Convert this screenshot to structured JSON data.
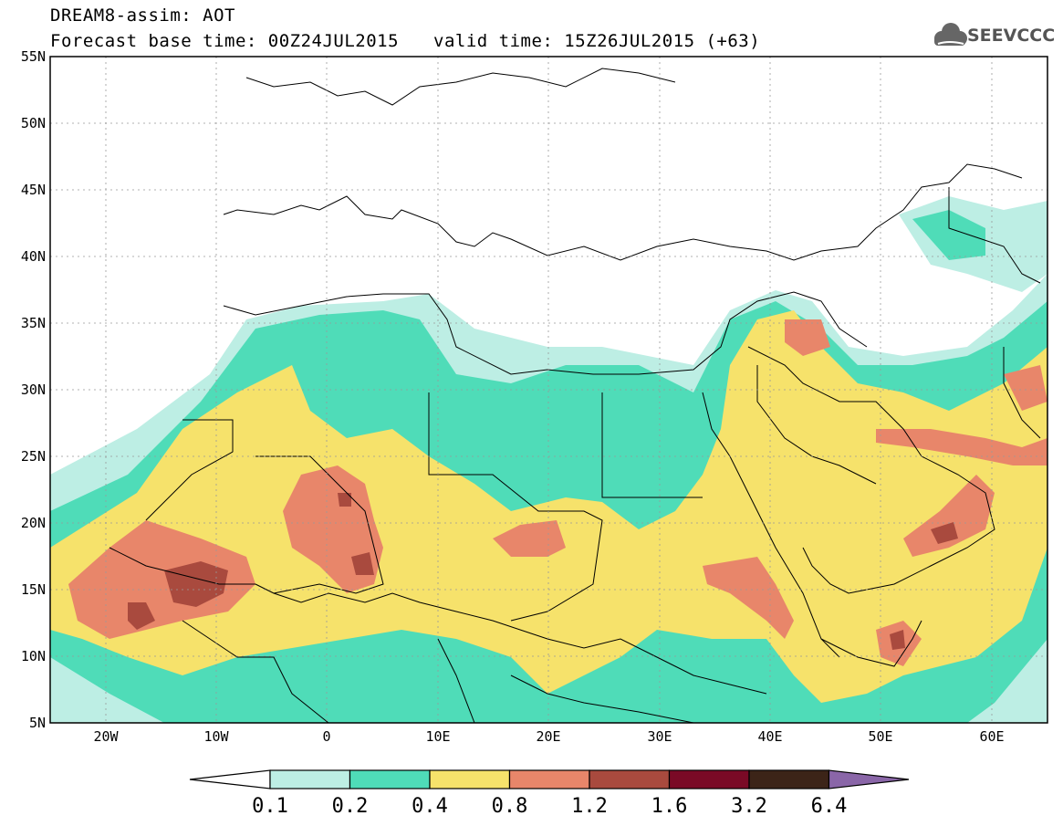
{
  "header": {
    "model_line": "DREAM8-assim: AOT",
    "base_time_line": "Forecast base time: 00Z24JUL2015",
    "valid_time_line": "valid time: 15Z26JUL2015 (+63)"
  },
  "logo": {
    "text": "SEEVCCC",
    "icon": "cloud-icon"
  },
  "axes": {
    "latitude_labels": [
      "55N",
      "50N",
      "45N",
      "40N",
      "35N",
      "30N",
      "25N",
      "20N",
      "15N",
      "10N",
      "5N"
    ],
    "longitude_labels": [
      "20W",
      "10W",
      "0",
      "10E",
      "20E",
      "30E",
      "40E",
      "50E",
      "60E"
    ]
  },
  "colorbar": {
    "levels": [
      "0.1",
      "0.2",
      "0.4",
      "0.8",
      "1.2",
      "1.6",
      "3.2",
      "6.4"
    ],
    "colors": [
      "#ffffff",
      "#bdeee4",
      "#4fdcb8",
      "#f6e26b",
      "#e8866a",
      "#a94a3e",
      "#7a0a26",
      "#3c2418",
      "#8a66a8"
    ]
  }
}
